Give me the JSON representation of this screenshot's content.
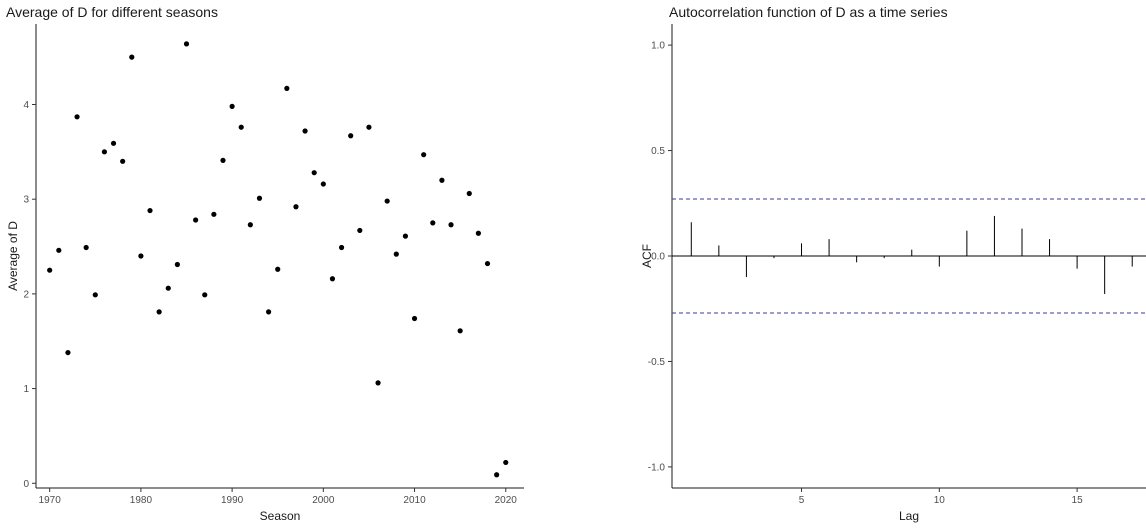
{
  "chart_data": [
    {
      "type": "scatter",
      "title": "Average of D for different seasons",
      "xlabel": "Season",
      "ylabel": "Average of D",
      "xlim": [
        1968.5,
        2022
      ],
      "ylim": [
        -0.05,
        4.85
      ],
      "xticks": [
        1970,
        1980,
        1990,
        2000,
        2010,
        2020
      ],
      "yticks": [
        0,
        1,
        2,
        3,
        4
      ],
      "grid": false,
      "points": [
        {
          "x": 1970,
          "y": 2.25
        },
        {
          "x": 1971,
          "y": 2.46
        },
        {
          "x": 1972,
          "y": 1.38
        },
        {
          "x": 1973,
          "y": 3.87
        },
        {
          "x": 1974,
          "y": 2.49
        },
        {
          "x": 1975,
          "y": 1.99
        },
        {
          "x": 1976,
          "y": 3.5
        },
        {
          "x": 1977,
          "y": 3.59
        },
        {
          "x": 1978,
          "y": 3.4
        },
        {
          "x": 1979,
          "y": 4.5
        },
        {
          "x": 1980,
          "y": 2.4
        },
        {
          "x": 1981,
          "y": 2.88
        },
        {
          "x": 1982,
          "y": 1.81
        },
        {
          "x": 1983,
          "y": 2.06
        },
        {
          "x": 1984,
          "y": 2.31
        },
        {
          "x": 1985,
          "y": 4.64
        },
        {
          "x": 1986,
          "y": 2.78
        },
        {
          "x": 1987,
          "y": 1.99
        },
        {
          "x": 1988,
          "y": 2.84
        },
        {
          "x": 1989,
          "y": 3.41
        },
        {
          "x": 1990,
          "y": 3.98
        },
        {
          "x": 1991,
          "y": 3.76
        },
        {
          "x": 1992,
          "y": 2.73
        },
        {
          "x": 1993,
          "y": 3.01
        },
        {
          "x": 1994,
          "y": 1.81
        },
        {
          "x": 1995,
          "y": 2.26
        },
        {
          "x": 1996,
          "y": 4.17
        },
        {
          "x": 1997,
          "y": 2.92
        },
        {
          "x": 1998,
          "y": 3.72
        },
        {
          "x": 1999,
          "y": 3.28
        },
        {
          "x": 2000,
          "y": 3.16
        },
        {
          "x": 2001,
          "y": 2.16
        },
        {
          "x": 2002,
          "y": 2.49
        },
        {
          "x": 2003,
          "y": 3.67
        },
        {
          "x": 2004,
          "y": 2.67
        },
        {
          "x": 2005,
          "y": 3.76
        },
        {
          "x": 2006,
          "y": 1.06
        },
        {
          "x": 2007,
          "y": 2.98
        },
        {
          "x": 2008,
          "y": 2.42
        },
        {
          "x": 2009,
          "y": 2.61
        },
        {
          "x": 2010,
          "y": 1.74
        },
        {
          "x": 2011,
          "y": 3.47
        },
        {
          "x": 2012,
          "y": 2.75
        },
        {
          "x": 2013,
          "y": 3.2
        },
        {
          "x": 2014,
          "y": 2.73
        },
        {
          "x": 2015,
          "y": 1.61
        },
        {
          "x": 2016,
          "y": 3.06
        },
        {
          "x": 2017,
          "y": 2.64
        },
        {
          "x": 2018,
          "y": 2.32
        },
        {
          "x": 2019,
          "y": 0.09
        },
        {
          "x": 2020,
          "y": 0.22
        }
      ]
    },
    {
      "type": "bar",
      "title": "Autocorrelation function of D as a time series",
      "xlabel": "Lag",
      "ylabel": "ACF",
      "xlim": [
        0.3,
        17.5
      ],
      "ylim": [
        -1.1,
        1.1
      ],
      "xticks": [
        5,
        10,
        15
      ],
      "yticks": [
        1.0,
        0.5,
        0.0,
        -0.5,
        -1.0
      ],
      "ytick_labels": [
        "1.0",
        "0.5",
        "0.0",
        "-0.5",
        "-1.0"
      ],
      "confidence_bound": 0.27,
      "grid": false,
      "lags": [
        1,
        2,
        3,
        4,
        5,
        6,
        7,
        8,
        9,
        10,
        11,
        12,
        13,
        14,
        15,
        16,
        17
      ],
      "values": [
        0.16,
        0.05,
        -0.1,
        -0.01,
        0.06,
        0.08,
        -0.03,
        -0.01,
        0.03,
        -0.05,
        0.12,
        0.19,
        0.13,
        0.08,
        -0.06,
        -0.18,
        -0.05
      ]
    }
  ]
}
